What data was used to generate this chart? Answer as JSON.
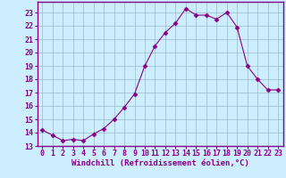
{
  "hours": [
    0,
    1,
    2,
    3,
    4,
    5,
    6,
    7,
    8,
    9,
    10,
    11,
    12,
    13,
    14,
    15,
    16,
    17,
    18,
    19,
    20,
    21,
    22,
    23
  ],
  "values": [
    14.2,
    13.8,
    13.4,
    13.5,
    13.4,
    13.9,
    14.3,
    15.0,
    15.9,
    16.9,
    19.0,
    20.5,
    21.5,
    22.2,
    23.3,
    22.8,
    22.8,
    22.5,
    23.0,
    21.9,
    19.0,
    18.0,
    17.2,
    17.2
  ],
  "line_color": "#880088",
  "marker": "D",
  "marker_size": 2.5,
  "background_color": "#cceeff",
  "grid_color": "#99bbcc",
  "spine_color": "#880088",
  "xlabel": "Windchill (Refroidissement éolien,°C)",
  "xlabel_color": "#880088",
  "xlabel_fontsize": 6.5,
  "tick_color": "#880088",
  "tick_fontsize": 6,
  "ylim": [
    13,
    23.8
  ],
  "xlim": [
    -0.5,
    23.5
  ],
  "yticks": [
    13,
    14,
    15,
    16,
    17,
    18,
    19,
    20,
    21,
    22,
    23
  ],
  "xticks": [
    0,
    1,
    2,
    3,
    4,
    5,
    6,
    7,
    8,
    9,
    10,
    11,
    12,
    13,
    14,
    15,
    16,
    17,
    18,
    19,
    20,
    21,
    22,
    23
  ]
}
